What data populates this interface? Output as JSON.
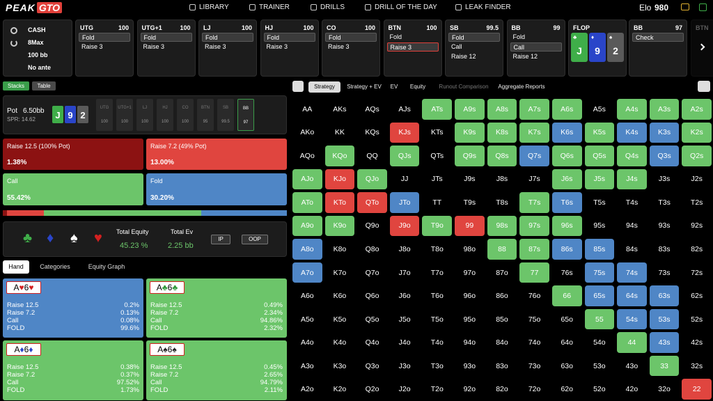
{
  "nav": {
    "logo_a": "PEAK",
    "logo_b": "GTO",
    "items": [
      "LIBRARY",
      "TRAINER",
      "DRILLS",
      "DRILL OF THE DAY",
      "LEAK FINDER"
    ],
    "elo_label": "Elo",
    "elo": "980"
  },
  "game": {
    "type": "CASH",
    "players": "8Max",
    "stack": "100 bb",
    "ante": "No ante"
  },
  "actions": [
    {
      "pos": "UTG",
      "stack": "100",
      "options": [
        "Fold",
        "Raise 3"
      ],
      "selected": 0
    },
    {
      "pos": "UTG+1",
      "stack": "100",
      "options": [
        "Fold",
        "Raise 3"
      ],
      "selected": 0
    },
    {
      "pos": "LJ",
      "stack": "100",
      "options": [
        "Fold",
        "Raise 3"
      ],
      "selected": 0
    },
    {
      "pos": "HJ",
      "stack": "100",
      "options": [
        "Fold",
        "Raise 3"
      ],
      "selected": 0
    },
    {
      "pos": "CO",
      "stack": "100",
      "options": [
        "Fold",
        "Raise 3"
      ],
      "selected": 0
    },
    {
      "pos": "BTN",
      "stack": "100",
      "options": [
        "Fold",
        "Raise 3"
      ],
      "selected": 1,
      "selected_color": "#e0403a"
    },
    {
      "pos": "SB",
      "stack": "99.5",
      "options": [
        "Fold",
        "Call",
        "Raise 12"
      ],
      "selected": 0
    },
    {
      "pos": "BB",
      "stack": "99",
      "options": [
        "Fold",
        "Call",
        "Raise 12"
      ],
      "selected": 1
    }
  ],
  "flop": {
    "label": "FLOP",
    "cards": [
      {
        "rank": "J",
        "suit": "♣",
        "color": "#3fae49"
      },
      {
        "rank": "9",
        "suit": "♦",
        "color": "#2a45c9"
      },
      {
        "rank": "2",
        "suit": "♠",
        "color": "#5a5a5a"
      }
    ]
  },
  "current": {
    "pos": "BB",
    "stack": "97",
    "options": [
      "Check"
    ],
    "selected": 0
  },
  "next": {
    "pos": "BTN"
  },
  "view_tabs": [
    "Stacks",
    "Table"
  ],
  "pot": {
    "label": "Pot",
    "value": "6.50bb",
    "spr": "SPR: 14.62",
    "active": 7,
    "seats": [
      {
        "pos": "UTG",
        "stack": "100"
      },
      {
        "pos": "UTG+1",
        "stack": "100"
      },
      {
        "pos": "LJ",
        "stack": "100"
      },
      {
        "pos": "HJ",
        "stack": "100"
      },
      {
        "pos": "CO",
        "stack": "100"
      },
      {
        "pos": "BTN",
        "stack": "95"
      },
      {
        "pos": "SB",
        "stack": "99.5"
      },
      {
        "pos": "BB",
        "stack": "97"
      }
    ]
  },
  "strategy": [
    {
      "name": "Raise 12.5 (100% Pot)",
      "freq": 1.38,
      "label": "1.38%",
      "color": "#8c1212"
    },
    {
      "name": "Raise 7.2 (49% Pot)",
      "freq": 13.0,
      "label": "13.00%",
      "color": "#e0453f"
    },
    {
      "name": "Call",
      "freq": 55.42,
      "label": "55.42%",
      "color": "#6cc56a"
    },
    {
      "name": "Fold",
      "freq": 30.2,
      "label": "30.20%",
      "color": "#4f86c6"
    }
  ],
  "equity": {
    "equity_label": "Total Equity",
    "equity": "45.23 %",
    "ev_label": "Total Ev",
    "ev": "2.25 bb",
    "buttons": [
      "IP",
      "OOP"
    ]
  },
  "hand_tabs": [
    "Hand",
    "Categories",
    "Equity Graph"
  ],
  "combos": [
    {
      "cards": [
        "A",
        "♥",
        "6",
        "♥"
      ],
      "suit_color": "#d32020",
      "color": "#4f86c6",
      "rows": [
        [
          "Raise 12.5",
          "0.2%"
        ],
        [
          "Raise 7.2",
          "0.13%"
        ],
        [
          "Call",
          "0.08%"
        ],
        [
          "FOLD",
          "99.6%"
        ]
      ]
    },
    {
      "cards": [
        "A",
        "♣",
        "6",
        "♣"
      ],
      "suit_color": "#2f9a3a",
      "color": "#6cc56a",
      "rows": [
        [
          "Raise 12.5",
          "0.49%"
        ],
        [
          "Raise 7.2",
          "2.34%"
        ],
        [
          "Call",
          "94.86%"
        ],
        [
          "FOLD",
          "2.32%"
        ]
      ]
    },
    {
      "cards": [
        "A",
        "♦",
        "6",
        "♦"
      ],
      "suit_color": "#2a45c9",
      "color": "#6cc56a",
      "rows": [
        [
          "Raise 12.5",
          "0.38%"
        ],
        [
          "Raise 7.2",
          "0.37%"
        ],
        [
          "Call",
          "97.52%"
        ],
        [
          "FOLD",
          "1.73%"
        ]
      ]
    },
    {
      "cards": [
        "A",
        "♠",
        "6",
        "♠"
      ],
      "suit_color": "#222222",
      "color": "#6cc56a",
      "rows": [
        [
          "Raise 12.5",
          "0.45%"
        ],
        [
          "Raise 7.2",
          "2.65%"
        ],
        [
          "Call",
          "94.79%"
        ],
        [
          "FOLD",
          "2.11%"
        ]
      ]
    }
  ],
  "grid_tabs": [
    "Strategy",
    "Strategy + EV",
    "EV",
    "Equity",
    "Runout Comparison",
    "Aggregate Reports"
  ],
  "grid": {
    "hands": [
      [
        "AA",
        "AKs",
        "AQs",
        "AJs",
        "ATs",
        "A9s",
        "A8s",
        "A7s",
        "A6s",
        "A5s",
        "A4s",
        "A3s",
        "A2s"
      ],
      [
        "AKo",
        "KK",
        "KQs",
        "KJs",
        "KTs",
        "K9s",
        "K8s",
        "K7s",
        "K6s",
        "K5s",
        "K4s",
        "K3s",
        "K2s"
      ],
      [
        "AQo",
        "KQo",
        "QQ",
        "QJs",
        "QTs",
        "Q9s",
        "Q8s",
        "Q7s",
        "Q6s",
        "Q5s",
        "Q4s",
        "Q3s",
        "Q2s"
      ],
      [
        "AJo",
        "KJo",
        "QJo",
        "JJ",
        "JTs",
        "J9s",
        "J8s",
        "J7s",
        "J6s",
        "J5s",
        "J4s",
        "J3s",
        "J2s"
      ],
      [
        "ATo",
        "KTo",
        "QTo",
        "JTo",
        "TT",
        "T9s",
        "T8s",
        "T7s",
        "T6s",
        "T5s",
        "T4s",
        "T3s",
        "T2s"
      ],
      [
        "A9o",
        "K9o",
        "Q9o",
        "J9o",
        "T9o",
        "99",
        "98s",
        "97s",
        "96s",
        "95s",
        "94s",
        "93s",
        "92s"
      ],
      [
        "A8o",
        "K8o",
        "Q8o",
        "J8o",
        "T8o",
        "98o",
        "88",
        "87s",
        "86s",
        "85s",
        "84s",
        "83s",
        "82s"
      ],
      [
        "A7o",
        "K7o",
        "Q7o",
        "J7o",
        "T7o",
        "97o",
        "87o",
        "77",
        "76s",
        "75s",
        "74s",
        "73s",
        "72s"
      ],
      [
        "A6o",
        "K6o",
        "Q6o",
        "J6o",
        "T6o",
        "96o",
        "86o",
        "76o",
        "66",
        "65s",
        "64s",
        "63s",
        "62s"
      ],
      [
        "A5o",
        "K5o",
        "Q5o",
        "J5o",
        "T5o",
        "95o",
        "85o",
        "75o",
        "65o",
        "55",
        "54s",
        "53s",
        "52s"
      ],
      [
        "A4o",
        "K4o",
        "Q4o",
        "J4o",
        "T4o",
        "94o",
        "84o",
        "74o",
        "64o",
        "54o",
        "44",
        "43s",
        "42s"
      ],
      [
        "A3o",
        "K3o",
        "Q3o",
        "J3o",
        "T3o",
        "93o",
        "83o",
        "73o",
        "63o",
        "53o",
        "43o",
        "33",
        "32s"
      ],
      [
        "A2o",
        "K2o",
        "Q2o",
        "J2o",
        "T2o",
        "92o",
        "82o",
        "72o",
        "62o",
        "52o",
        "42o",
        "32o",
        "22"
      ]
    ],
    "fills": [
      [
        null,
        null,
        null,
        null,
        "#6cc56a",
        "#6cc56a",
        "#6cc56a",
        "#6cc56a",
        "#6cc56a",
        null,
        "#6cc56a",
        "#6cc56a",
        "#6cc56a"
      ],
      [
        null,
        null,
        null,
        "#e0453f",
        null,
        "#6cc56a",
        "#6cc56a",
        "#6cc56a",
        "#4f86c6",
        "#6cc56a",
        "#4f86c6",
        "#4f86c6",
        "#6cc56a"
      ],
      [
        null,
        "#6cc56a",
        null,
        "#6cc56a",
        null,
        "#6cc56a",
        "#6cc56a",
        "#4f86c6",
        "#6cc56a",
        "#6cc56a",
        "#6cc56a",
        "#4f86c6",
        "#6cc56a"
      ],
      [
        "#6cc56a",
        "#e0453f",
        "#6cc56a",
        null,
        null,
        null,
        null,
        null,
        "#6cc56a",
        "#6cc56a",
        "#6cc56a",
        null,
        null
      ],
      [
        "#6cc56a",
        "#e0453f",
        "#e0453f",
        "#4f86c6",
        null,
        null,
        null,
        "#6cc56a",
        "#4f86c6",
        null,
        null,
        null,
        null
      ],
      [
        "#6cc56a",
        "#6cc56a",
        null,
        "#e0453f",
        "#6cc56a",
        "#e0453f",
        "#6cc56a",
        "#6cc56a",
        "#6cc56a",
        null,
        null,
        null,
        null
      ],
      [
        "#4f86c6",
        null,
        null,
        null,
        null,
        null,
        "#6cc56a",
        "#6cc56a",
        "#4f86c6",
        "#4f86c6",
        null,
        null,
        null
      ],
      [
        "#4f86c6",
        null,
        null,
        null,
        null,
        null,
        null,
        "#6cc56a",
        null,
        "#4f86c6",
        "#4f86c6",
        null,
        null
      ],
      [
        null,
        null,
        null,
        null,
        null,
        null,
        null,
        null,
        "#6cc56a",
        "#4f86c6",
        "#4f86c6",
        "#4f86c6",
        null
      ],
      [
        null,
        null,
        null,
        null,
        null,
        null,
        null,
        null,
        null,
        "#6cc56a",
        "#4f86c6",
        "#4f86c6",
        null
      ],
      [
        null,
        null,
        null,
        null,
        null,
        null,
        null,
        null,
        null,
        null,
        "#6cc56a",
        "#4f86c6",
        null
      ],
      [
        null,
        null,
        null,
        null,
        null,
        null,
        null,
        null,
        null,
        null,
        null,
        "#6cc56a",
        null
      ],
      [
        null,
        null,
        null,
        null,
        null,
        null,
        null,
        null,
        null,
        null,
        null,
        null,
        "#e0453f"
      ]
    ]
  }
}
